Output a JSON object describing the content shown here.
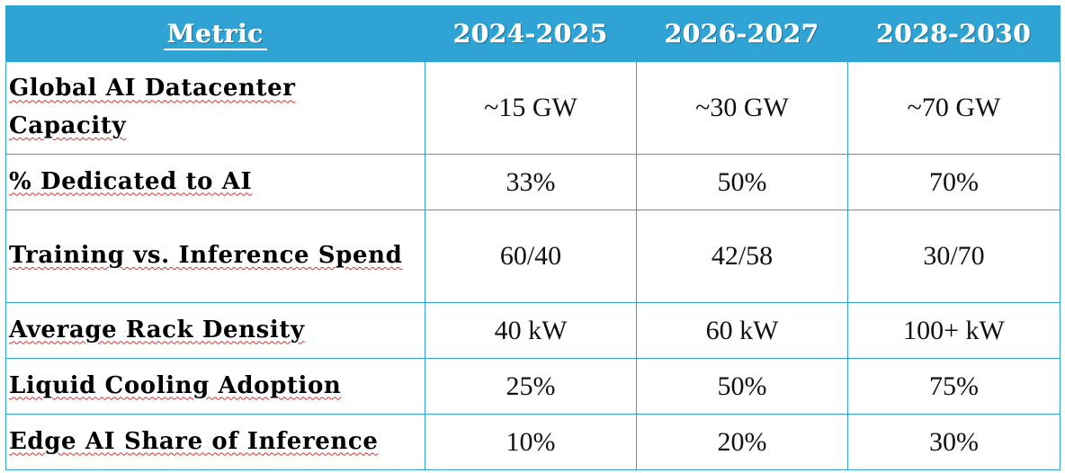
{
  "table": {
    "headers": [
      "Metric",
      "2024-2025",
      "2026-2027",
      "2028-2030"
    ],
    "rows": [
      {
        "metric": "Global AI Datacenter Capacity",
        "values": [
          "~15 GW",
          "~30 GW",
          "~70 GW"
        ]
      },
      {
        "metric": "% Dedicated to AI",
        "values": [
          "33%",
          "50%",
          "70%"
        ]
      },
      {
        "metric": "Training vs. Inference Spend",
        "values": [
          "60/40",
          "42/58",
          "30/70"
        ]
      },
      {
        "metric": "Average Rack Density",
        "values": [
          "40 kW",
          "60 kW",
          "100+ kW"
        ]
      },
      {
        "metric": "Liquid Cooling Adoption",
        "values": [
          "25%",
          "50%",
          "75%"
        ]
      },
      {
        "metric": "Edge AI Share of Inference",
        "values": [
          "10%",
          "20%",
          "30%"
        ]
      }
    ]
  },
  "colors": {
    "header_background": "#2ea3d4",
    "border": "#2ea3d4",
    "header_text": "#ffffff",
    "spellcheck_underline": "#d93030"
  }
}
